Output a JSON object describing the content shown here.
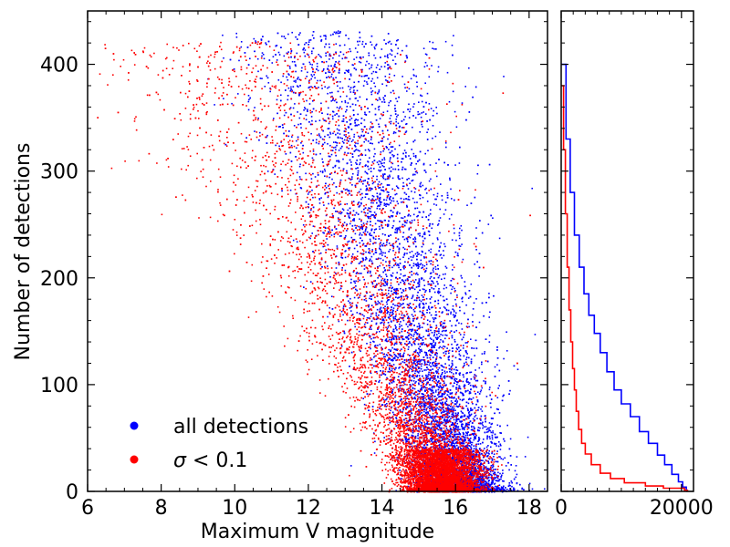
{
  "chart_data": [
    {
      "type": "scatter",
      "xlabel": "Maximum V magnitude",
      "ylabel": "Number of detections",
      "xlim": [
        6,
        18.5
      ],
      "ylim": [
        0,
        450
      ],
      "xticks": [
        6,
        8,
        10,
        12,
        14,
        16,
        18
      ],
      "yticks": [
        0,
        100,
        200,
        300,
        400
      ],
      "legend_position": "lower-left",
      "grid": false,
      "series": [
        {
          "name": "all detections",
          "color": "#0000ff",
          "description_points": [
            [
              13.2,
              400
            ],
            [
              13.8,
              380
            ],
            [
              14.2,
              350
            ],
            [
              14.6,
              320
            ],
            [
              14.9,
              300
            ],
            [
              15.2,
              280
            ],
            [
              15.5,
              250
            ],
            [
              15.7,
              230
            ],
            [
              15.9,
              200
            ],
            [
              16.1,
              170
            ],
            [
              16.3,
              140
            ],
            [
              16.5,
              110
            ],
            [
              16.7,
              80
            ],
            [
              16.9,
              60
            ],
            [
              17.2,
              40
            ],
            [
              17.6,
              20
            ],
            [
              18.0,
              8
            ],
            [
              18.4,
              3
            ],
            [
              12.2,
              330
            ],
            [
              11.5,
              360
            ],
            [
              10.8,
              380
            ],
            [
              15.0,
              120
            ],
            [
              15.6,
              60
            ],
            [
              16.0,
              30
            ]
          ]
        },
        {
          "name": "σ < 0.1",
          "color": "#ff0000",
          "description_points": [
            [
              7.0,
              310
            ],
            [
              8.0,
              260
            ],
            [
              9.0,
              350
            ],
            [
              10.0,
              320
            ],
            [
              11.0,
              300
            ],
            [
              12.0,
              330
            ],
            [
              12.6,
              320
            ],
            [
              13.0,
              280
            ],
            [
              13.5,
              250
            ],
            [
              14.0,
              200
            ],
            [
              14.4,
              160
            ],
            [
              14.8,
              120
            ],
            [
              15.1,
              80
            ],
            [
              15.4,
              50
            ],
            [
              15.7,
              30
            ],
            [
              16.0,
              15
            ],
            [
              16.4,
              8
            ],
            [
              17.0,
              4
            ]
          ]
        }
      ]
    },
    {
      "type": "line",
      "subtype": "histogram-step",
      "xlim": [
        0,
        22000
      ],
      "ylim": [
        0,
        450
      ],
      "xticks": [
        0,
        20000
      ],
      "xtick_labels": [
        "0",
        "20000"
      ],
      "series": [
        {
          "name": "all detections",
          "color": "#0000ff",
          "points": [
            [
              50,
              400
            ],
            [
              800,
              330
            ],
            [
              1500,
              280
            ],
            [
              2200,
              240
            ],
            [
              3000,
              210
            ],
            [
              3800,
              185
            ],
            [
              4600,
              165
            ],
            [
              5500,
              148
            ],
            [
              6500,
              130
            ],
            [
              7600,
              112
            ],
            [
              8800,
              95
            ],
            [
              10000,
              82
            ],
            [
              11500,
              70
            ],
            [
              13000,
              56
            ],
            [
              14500,
              45
            ],
            [
              16000,
              34
            ],
            [
              17200,
              25
            ],
            [
              18400,
              16
            ],
            [
              19500,
              9
            ],
            [
              20200,
              4
            ],
            [
              20800,
              0
            ]
          ]
        },
        {
          "name": "σ < 0.1",
          "color": "#ff0000",
          "points": [
            [
              50,
              380
            ],
            [
              400,
              320
            ],
            [
              700,
              260
            ],
            [
              1000,
              210
            ],
            [
              1300,
              170
            ],
            [
              1600,
              140
            ],
            [
              1900,
              115
            ],
            [
              2200,
              95
            ],
            [
              2500,
              75
            ],
            [
              2900,
              58
            ],
            [
              3400,
              45
            ],
            [
              4000,
              35
            ],
            [
              5000,
              25
            ],
            [
              6500,
              17
            ],
            [
              8200,
              12
            ],
            [
              10500,
              8
            ],
            [
              14000,
              5
            ],
            [
              17000,
              3
            ],
            [
              20500,
              1
            ],
            [
              21000,
              0
            ]
          ]
        }
      ]
    }
  ],
  "legend": {
    "items": [
      {
        "label": "all detections",
        "color": "#0000ff"
      },
      {
        "label_var": "σ",
        "label_rest": " < 0.1",
        "color": "#ff0000"
      }
    ]
  }
}
